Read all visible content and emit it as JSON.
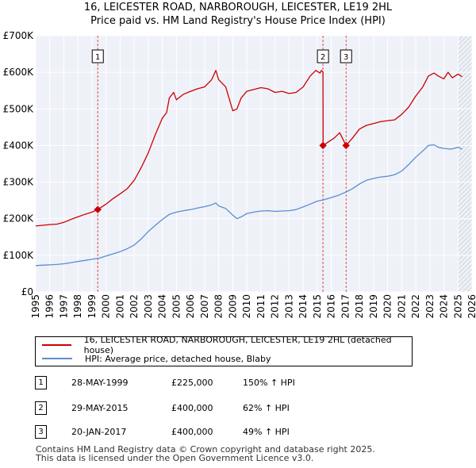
{
  "chart_data": {
    "type": "line",
    "title": "16, LEICESTER ROAD, NARBOROUGH, LEICESTER, LE19 2HL",
    "subtitle": "Price paid vs. HM Land Registry's House Price Index (HPI)",
    "xlabel": "",
    "ylabel": "",
    "xlim": [
      1995,
      2026
    ],
    "ylim": [
      0,
      700000
    ],
    "y_ticks": [
      0,
      100000,
      200000,
      300000,
      400000,
      500000,
      600000,
      700000
    ],
    "y_tick_labels": [
      "£0",
      "£100K",
      "£200K",
      "£300K",
      "£400K",
      "£500K",
      "£600K",
      "£700K"
    ],
    "x_ticks": [
      1995,
      1996,
      1997,
      1998,
      1999,
      2000,
      2001,
      2002,
      2003,
      2004,
      2005,
      2006,
      2007,
      2008,
      2009,
      2010,
      2011,
      2012,
      2013,
      2014,
      2015,
      2016,
      2017,
      2018,
      2019,
      2020,
      2021,
      2022,
      2023,
      2024,
      2025,
      2026
    ],
    "x_tick_labels": [
      "1995",
      "1996",
      "1997",
      "1998",
      "1999",
      "2000",
      "2001",
      "2002",
      "2003",
      "2004",
      "2005",
      "2006",
      "2007",
      "2008",
      "2009",
      "2010",
      "2011",
      "2012",
      "2013",
      "2014",
      "2015",
      "2016",
      "2017",
      "2018",
      "2019",
      "2020",
      "2021",
      "2022",
      "2023",
      "2024",
      "2025",
      "2026"
    ],
    "grid": true,
    "forecast_from": 2025.0,
    "series": [
      {
        "name": "16, LEICESTER ROAD, NARBOROUGH, LEICESTER, LE19 2HL (detached house)",
        "color": "#cc0000",
        "x": [
          1995.0,
          1995.5,
          1996.0,
          1996.5,
          1997.0,
          1997.5,
          1998.0,
          1998.5,
          1999.0,
          1999.41,
          2000.0,
          2000.5,
          2001.0,
          2001.5,
          2002.0,
          2002.5,
          2003.0,
          2003.5,
          2004.0,
          2004.3,
          2004.5,
          2004.8,
          2005.0,
          2005.5,
          2006.0,
          2006.5,
          2007.0,
          2007.5,
          2007.8,
          2008.0,
          2008.5,
          2009.0,
          2009.3,
          2009.6,
          2010.0,
          2010.5,
          2011.0,
          2011.5,
          2012.0,
          2012.5,
          2013.0,
          2013.5,
          2014.0,
          2014.5,
          2014.9,
          2015.2,
          2015.3,
          2015.41,
          2015.42,
          2015.8,
          2016.2,
          2016.6,
          2017.05,
          2017.5,
          2018.0,
          2018.5,
          2019.0,
          2019.5,
          2020.0,
          2020.5,
          2021.0,
          2021.5,
          2022.0,
          2022.5,
          2022.9,
          2023.3,
          2023.6,
          2024.0,
          2024.3,
          2024.6,
          2025.0,
          2025.3
        ],
        "y": [
          180000,
          182000,
          184000,
          185000,
          190000,
          198000,
          205000,
          212000,
          218000,
          225000,
          240000,
          255000,
          268000,
          282000,
          305000,
          340000,
          380000,
          430000,
          475000,
          490000,
          530000,
          545000,
          525000,
          540000,
          548000,
          555000,
          560000,
          580000,
          605000,
          580000,
          560000,
          495000,
          500000,
          530000,
          548000,
          553000,
          558000,
          555000,
          545000,
          548000,
          542000,
          545000,
          560000,
          590000,
          605000,
          598000,
          605000,
          600000,
          400000,
          410000,
          420000,
          435000,
          400000,
          420000,
          445000,
          455000,
          460000,
          465000,
          468000,
          470000,
          485000,
          505000,
          535000,
          560000,
          590000,
          598000,
          590000,
          582000,
          600000,
          585000,
          595000,
          588000
        ],
        "marker_points": [
          {
            "label": "1",
            "x": 1999.41,
            "y": 225000
          },
          {
            "label": "2",
            "x": 2015.41,
            "y": 400000
          },
          {
            "label": "3",
            "x": 2017.05,
            "y": 400000
          }
        ]
      },
      {
        "name": "HPI: Average price, detached house, Blaby",
        "color": "#5b8ecf",
        "x": [
          1995.0,
          1995.5,
          1996.0,
          1996.5,
          1997.0,
          1997.5,
          1998.0,
          1998.5,
          1999.0,
          1999.5,
          2000.0,
          2000.5,
          2001.0,
          2001.5,
          2002.0,
          2002.5,
          2003.0,
          2003.5,
          2004.0,
          2004.5,
          2005.0,
          2005.5,
          2006.0,
          2006.5,
          2007.0,
          2007.5,
          2007.8,
          2008.0,
          2008.5,
          2009.0,
          2009.3,
          2009.6,
          2010.0,
          2010.5,
          2011.0,
          2011.5,
          2012.0,
          2012.5,
          2013.0,
          2013.5,
          2014.0,
          2014.5,
          2015.0,
          2015.5,
          2016.0,
          2016.5,
          2017.0,
          2017.5,
          2018.0,
          2018.5,
          2019.0,
          2019.5,
          2020.0,
          2020.5,
          2021.0,
          2021.5,
          2022.0,
          2022.5,
          2022.9,
          2023.3,
          2023.6,
          2024.0,
          2024.5,
          2025.0,
          2025.3
        ],
        "y": [
          72000,
          73000,
          74000,
          75000,
          77000,
          80000,
          83000,
          86000,
          89000,
          92000,
          98000,
          104000,
          110000,
          118000,
          128000,
          145000,
          165000,
          182000,
          198000,
          212000,
          218000,
          222000,
          225000,
          229000,
          233000,
          238000,
          243000,
          235000,
          228000,
          210000,
          200000,
          205000,
          214000,
          218000,
          221000,
          222000,
          220000,
          221000,
          222000,
          225000,
          232000,
          240000,
          248000,
          252000,
          258000,
          264000,
          272000,
          282000,
          295000,
          305000,
          310000,
          314000,
          316000,
          320000,
          330000,
          348000,
          368000,
          385000,
          400000,
          402000,
          395000,
          392000,
          390000,
          395000,
          390000
        ]
      }
    ]
  },
  "legend": {
    "sale_label": "16, LEICESTER ROAD, NARBOROUGH, LEICESTER, LE19 2HL (detached house)",
    "hpi_label": "HPI: Average price, detached house, Blaby"
  },
  "sales": [
    {
      "num": "1",
      "date": "28-MAY-1999",
      "price": "£225,000",
      "hpi": "150% ↑ HPI"
    },
    {
      "num": "2",
      "date": "29-MAY-2015",
      "price": "£400,000",
      "hpi": "62% ↑ HPI"
    },
    {
      "num": "3",
      "date": "20-JAN-2017",
      "price": "£400,000",
      "hpi": "49% ↑ HPI"
    }
  ],
  "footer": {
    "line1": "Contains HM Land Registry data © Crown copyright and database right 2025.",
    "line2": "This data is licensed under the Open Government Licence v3.0."
  }
}
